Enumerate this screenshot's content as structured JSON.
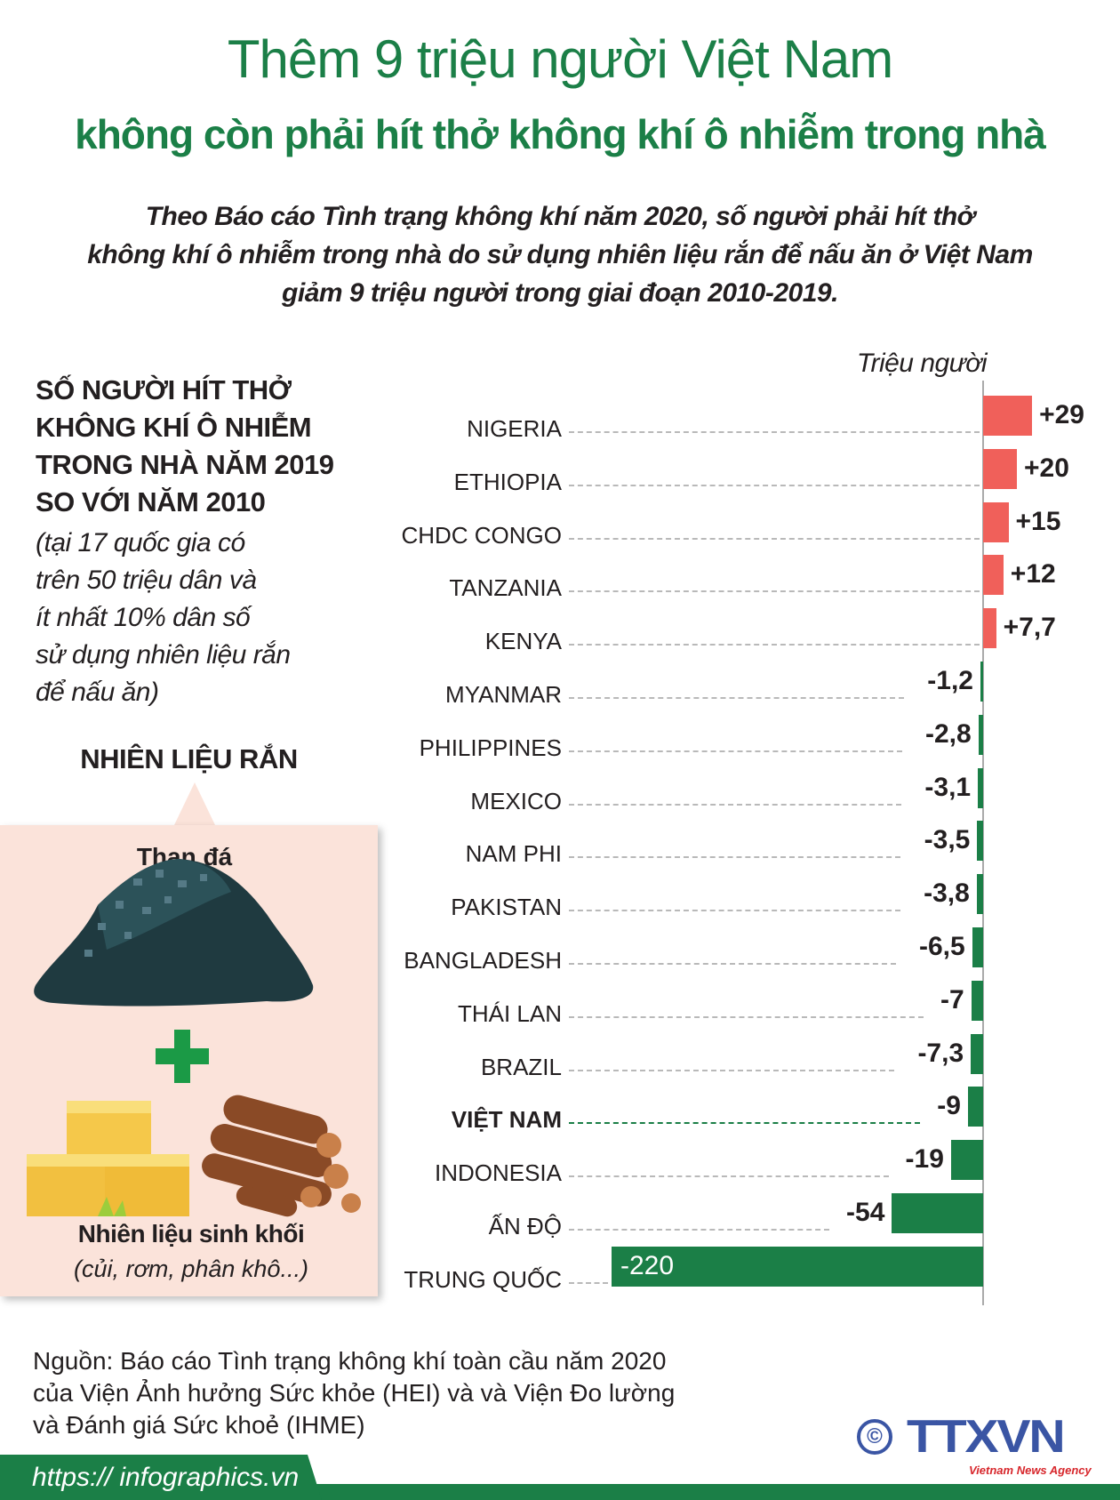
{
  "header": {
    "title": "Thêm 9 triệu người Việt Nam",
    "subtitle": "không còn phải hít thở không khí ô nhiễm trong nhà"
  },
  "intro": [
    "Theo Báo cáo Tình trạng không khí năm 2020, số người phải hít thở",
    "không khí ô nhiễm trong nhà do sử dụng nhiên liệu rắn để nấu ăn ở Việt Nam",
    "giảm 9 triệu người trong giai đoạn 2010-2019."
  ],
  "left": {
    "heading": [
      "SỐ NGƯỜI HÍT THỞ",
      "KHÔNG KHÍ Ô NHIỄM",
      "TRONG NHÀ NĂM 2019",
      "SO VỚI NĂM 2010"
    ],
    "subtext": [
      "(tại 17 quốc gia có",
      "trên 50 triệu dân và",
      "ít nhất 10% dân số",
      "sử dụng nhiên liệu rắn",
      "để nấu ăn)"
    ],
    "fuel_heading": "NHIÊN LIỆU RẮN",
    "coal_label": "Than đá",
    "biomass_label": "Nhiên liệu sinh khối",
    "biomass_sub": "(củi, rơm, phân khô...)"
  },
  "chart_data": {
    "type": "bar",
    "orientation": "horizontal",
    "unit_label": "Triệu người",
    "categories": [
      "NIGERIA",
      "ETHIOPIA",
      "CHDC CONGO",
      "TANZANIA",
      "KENYA",
      "MYANMAR",
      "PHILIPPINES",
      "MEXICO",
      "NAM PHI",
      "PAKISTAN",
      "BANGLADESH",
      "THÁI LAN",
      "BRAZIL",
      "VIỆT NAM",
      "INDONESIA",
      "ẤN ĐỘ",
      "TRUNG QUỐC"
    ],
    "values": [
      29,
      20,
      15,
      12,
      7.7,
      -1.2,
      -2.8,
      -3.1,
      -3.5,
      -3.8,
      -6.5,
      -7,
      -7.3,
      -9,
      -19,
      -54,
      -220
    ],
    "value_labels": [
      "+29",
      "+20",
      "+15",
      "+12",
      "+7,7",
      "-1,2",
      "-2,8",
      "-3,1",
      "-3,5",
      "-3,8",
      "-6,5",
      "-7",
      "-7,3",
      "-9",
      "-19",
      "-54",
      "-220"
    ],
    "highlight": "VIỆT NAM",
    "colors": {
      "positive": "#f0605a",
      "negative": "#1b7f47"
    }
  },
  "footer": {
    "source": [
      "Nguồn: Báo cáo Tình trạng không khí toàn cầu năm 2020",
      "của Viện Ảnh hưởng Sức khỏe (HEI) và và Viện Đo lường",
      "và Đánh giá Sức khoẻ (IHME)"
    ],
    "url": "https:// infographics.vn",
    "copyright": "©",
    "logo": "TTXVN",
    "logo_sub": "Vietnam News Agency"
  }
}
